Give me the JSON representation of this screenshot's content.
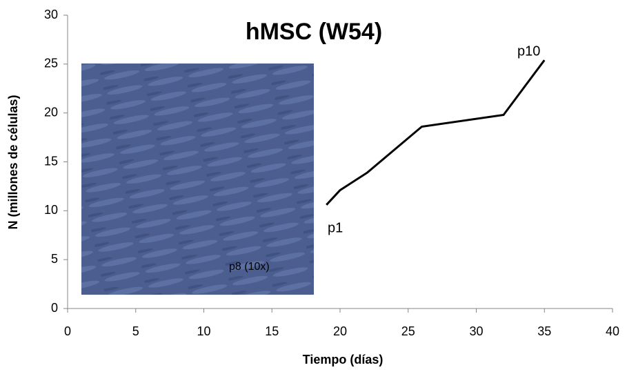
{
  "chart_data": {
    "type": "line",
    "title": "hMSC (W54)",
    "x_label": "Tiempo (días)",
    "y_label": "N (millones de células)",
    "series": [
      {
        "name": "hMSC (W54)",
        "color": "#000000",
        "x": [
          19,
          20,
          22,
          26,
          32,
          35
        ],
        "values": [
          10.6,
          12.1,
          13.9,
          18.6,
          19.8,
          25.4
        ]
      }
    ],
    "annotations": [
      "p1",
      "p10",
      "p8 (10x)"
    ],
    "xlim": [
      0,
      40
    ],
    "xticks": [
      0,
      5,
      10,
      15,
      20,
      25,
      30,
      35,
      40
    ],
    "ylim": [
      0,
      30
    ],
    "yticks": [
      0,
      5,
      10,
      15,
      20,
      25,
      30
    ],
    "grid": false
  }
}
